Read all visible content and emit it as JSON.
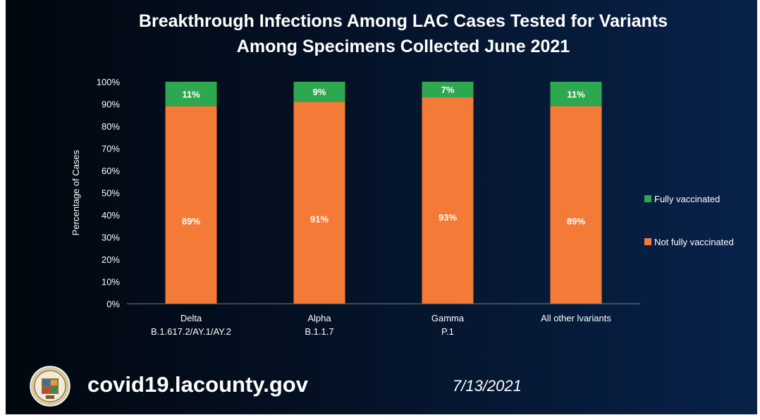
{
  "slide": {
    "title_line1": "Breakthrough Infections Among LAC Cases Tested for Variants",
    "title_line2": "Among Specimens Collected June 2021",
    "url": "covid19.lacounty.gov",
    "date": "7/13/2021",
    "seal_icon": "la-county-seal-icon"
  },
  "chart_data": {
    "type": "bar",
    "stacked": true,
    "title": "Breakthrough Infections Among LAC Cases Tested for Variants Among Specimens Collected June 2021",
    "xlabel": "",
    "ylabel": "Percentage of Cases",
    "ylim": [
      0,
      100
    ],
    "yticks": [
      "0%",
      "10%",
      "20%",
      "30%",
      "40%",
      "50%",
      "60%",
      "70%",
      "80%",
      "90%",
      "100%"
    ],
    "categories": [
      [
        "Delta",
        "B.1.617.2/AY.1/AY.2"
      ],
      [
        "Alpha",
        "B.1.1.7"
      ],
      [
        "Gamma",
        "P.1"
      ],
      [
        "All other lvariants"
      ]
    ],
    "series": [
      {
        "name": "Not fully vaccinated",
        "color": "#f47a38",
        "values": [
          89,
          91,
          93,
          89
        ],
        "labels": [
          "89%",
          "91%",
          "93%",
          "89%"
        ]
      },
      {
        "name": "Fully vaccinated",
        "color": "#2ea84f",
        "values": [
          11,
          9,
          7,
          11
        ],
        "labels": [
          "11%",
          "9%",
          "7%",
          "11%"
        ]
      }
    ],
    "legend": [
      "Fully vaccinated",
      "Not fully vaccinated"
    ],
    "legend_position": "right",
    "grid": false
  }
}
